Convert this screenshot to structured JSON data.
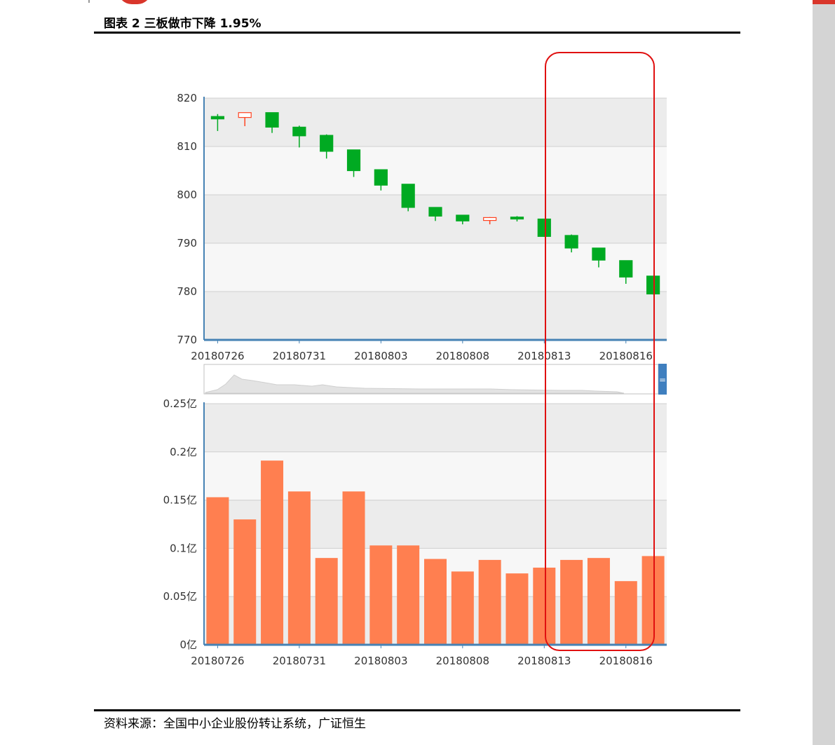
{
  "header": {
    "title": "图表 2 三板做市下降 1.95%"
  },
  "footer": {
    "source": "资料来源：全国中小企业股份转让系统，广证恒生"
  },
  "colors": {
    "down": "#00aa22",
    "up": "#ff4422",
    "volume_bar": "#ff7f50",
    "axis": "#4682b4",
    "highlight": "#e01010"
  },
  "chart_data": [
    {
      "type": "candlestick",
      "x_tick_labels": [
        "20180726",
        "20180731",
        "20180803",
        "20180808",
        "20180813",
        "20180816"
      ],
      "x_tick_index": [
        0,
        3,
        6,
        9,
        12,
        15
      ],
      "y_ticks": [
        "820",
        "810",
        "800",
        "790",
        "780",
        "770"
      ],
      "ylim": [
        770,
        820
      ],
      "grid": true,
      "candles": [
        {
          "open": 816.2,
          "close": 815.7,
          "high": 816.7,
          "low": 813.2
        },
        {
          "open": 816.0,
          "close": 817.0,
          "high": 817.0,
          "low": 814.2
        },
        {
          "open": 817.0,
          "close": 814.0,
          "high": 817.0,
          "low": 812.8
        },
        {
          "open": 814.0,
          "close": 812.2,
          "high": 814.3,
          "low": 809.8
        },
        {
          "open": 812.3,
          "close": 809.0,
          "high": 812.5,
          "low": 807.5
        },
        {
          "open": 809.3,
          "close": 805.0,
          "high": 809.3,
          "low": 803.7
        },
        {
          "open": 805.2,
          "close": 802.0,
          "high": 805.2,
          "low": 800.9
        },
        {
          "open": 802.2,
          "close": 797.4,
          "high": 802.2,
          "low": 796.6
        },
        {
          "open": 797.4,
          "close": 795.6,
          "high": 797.4,
          "low": 794.6
        },
        {
          "open": 795.8,
          "close": 794.6,
          "high": 795.8,
          "low": 793.9
        },
        {
          "open": 794.7,
          "close": 795.3,
          "high": 795.4,
          "low": 793.9
        },
        {
          "open": 795.4,
          "close": 795.0,
          "high": 795.6,
          "low": 794.5
        },
        {
          "open": 795.0,
          "close": 791.4,
          "high": 795.0,
          "low": 791.3
        },
        {
          "open": 791.6,
          "close": 789.0,
          "high": 791.8,
          "low": 788.1
        },
        {
          "open": 789.0,
          "close": 786.5,
          "high": 789.0,
          "low": 785.0
        },
        {
          "open": 786.4,
          "close": 783.0,
          "high": 786.4,
          "low": 781.6
        },
        {
          "open": 783.2,
          "close": 779.5,
          "high": 783.2,
          "low": 779.4
        }
      ]
    },
    {
      "type": "bar",
      "x_tick_labels": [
        "20180726",
        "20180731",
        "20180803",
        "20180808",
        "20180813",
        "20180816"
      ],
      "x_tick_index": [
        0,
        3,
        6,
        9,
        12,
        15
      ],
      "y_ticks": [
        "0.25亿",
        "0.2亿",
        "0.15亿",
        "0.1亿",
        "0.05亿",
        "0亿"
      ],
      "ylim": [
        0,
        0.25
      ],
      "grid": true,
      "values": [
        0.153,
        0.13,
        0.191,
        0.159,
        0.09,
        0.159,
        0.103,
        0.103,
        0.089,
        0.076,
        0.088,
        0.074,
        0.08,
        0.088,
        0.09,
        0.066,
        0.092
      ]
    }
  ]
}
